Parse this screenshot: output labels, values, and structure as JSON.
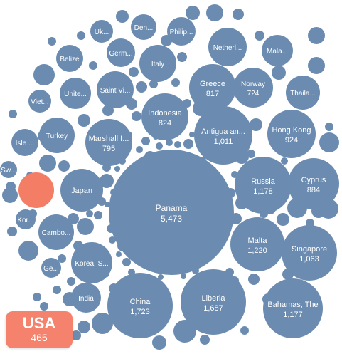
{
  "chart_data": {
    "type": "bubble",
    "title": "",
    "colors": {
      "bubble": "#6b8cb0",
      "highlight": "#f47d66",
      "label": "#ffffff"
    },
    "highlighted": {
      "name": "USA",
      "value": 465
    },
    "labeled_bubbles": [
      {
        "name": "Panama",
        "value": 5473
      },
      {
        "name": "China",
        "value": 1723
      },
      {
        "name": "Liberia",
        "value": 1687
      },
      {
        "name": "Malta",
        "value": 1220
      },
      {
        "name": "Russia",
        "value": 1178
      },
      {
        "name": "Bahamas, The",
        "value": 1177
      },
      {
        "name": "Singapore",
        "value": 1063
      },
      {
        "name": "Antigua an...",
        "value": 1011
      },
      {
        "name": "Hong Kong",
        "value": 924
      },
      {
        "name": "Cyprus",
        "value": 884
      },
      {
        "name": "Indonesia",
        "value": 824
      },
      {
        "name": "Greece",
        "value": 817
      },
      {
        "name": "Marshall I...",
        "value": 795
      },
      {
        "name": "Norway",
        "value": 724
      },
      {
        "name": "Japan",
        "value": null
      },
      {
        "name": "Korea, S...",
        "value": null
      },
      {
        "name": "Cambo...",
        "value": null
      },
      {
        "name": "India",
        "value": null
      },
      {
        "name": "Turkey",
        "value": null
      },
      {
        "name": "Saint Vi...",
        "value": null
      },
      {
        "name": "Italy",
        "value": null
      },
      {
        "name": "Netherl...",
        "value": null
      },
      {
        "name": "Thaila...",
        "value": null
      },
      {
        "name": "Unite...",
        "value": null
      },
      {
        "name": "Germ...",
        "value": null
      },
      {
        "name": "Philip...",
        "value": null
      },
      {
        "name": "Den...",
        "value": null
      },
      {
        "name": "Uk...",
        "value": null
      },
      {
        "name": "Mala...",
        "value": null
      },
      {
        "name": "Belize",
        "value": null
      },
      {
        "name": "Viet...",
        "value": null
      },
      {
        "name": "Isle ...",
        "value": null
      },
      {
        "name": "Sw...",
        "value": null
      },
      {
        "name": "Kor...",
        "value": null
      },
      {
        "name": "Ge...",
        "value": null
      }
    ]
  }
}
